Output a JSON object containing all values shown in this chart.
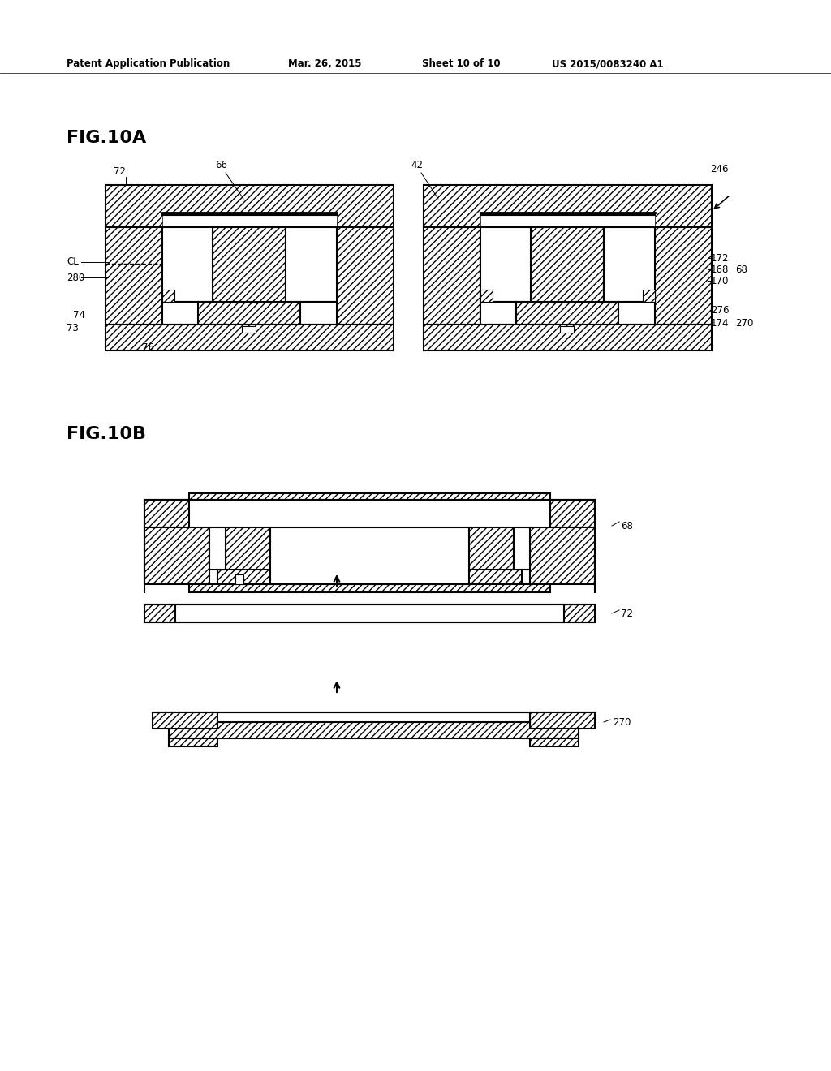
{
  "bg_color": "#ffffff",
  "line_color": "#000000",
  "header_text": "Patent Application Publication",
  "header_date": "Mar. 26, 2015",
  "header_sheet": "Sheet 10 of 10",
  "header_patent": "US 2015/0083240 A1",
  "fig10a_label": "FIG.10A",
  "fig10b_label": "FIG.10B"
}
